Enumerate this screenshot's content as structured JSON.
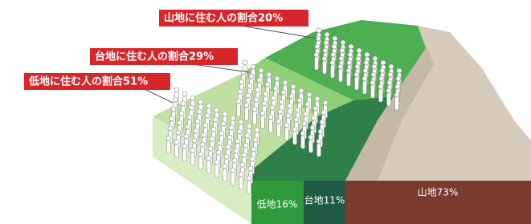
{
  "labels": {
    "mountain": "山地に住む人の割合20%",
    "plateau": "台地に住む人の割合29%",
    "lowland": "低地に住む人の割合51%"
  },
  "area": {
    "lowland": "低地16%",
    "plateau": "台地11%",
    "mountain": "山地73%"
  }
}
